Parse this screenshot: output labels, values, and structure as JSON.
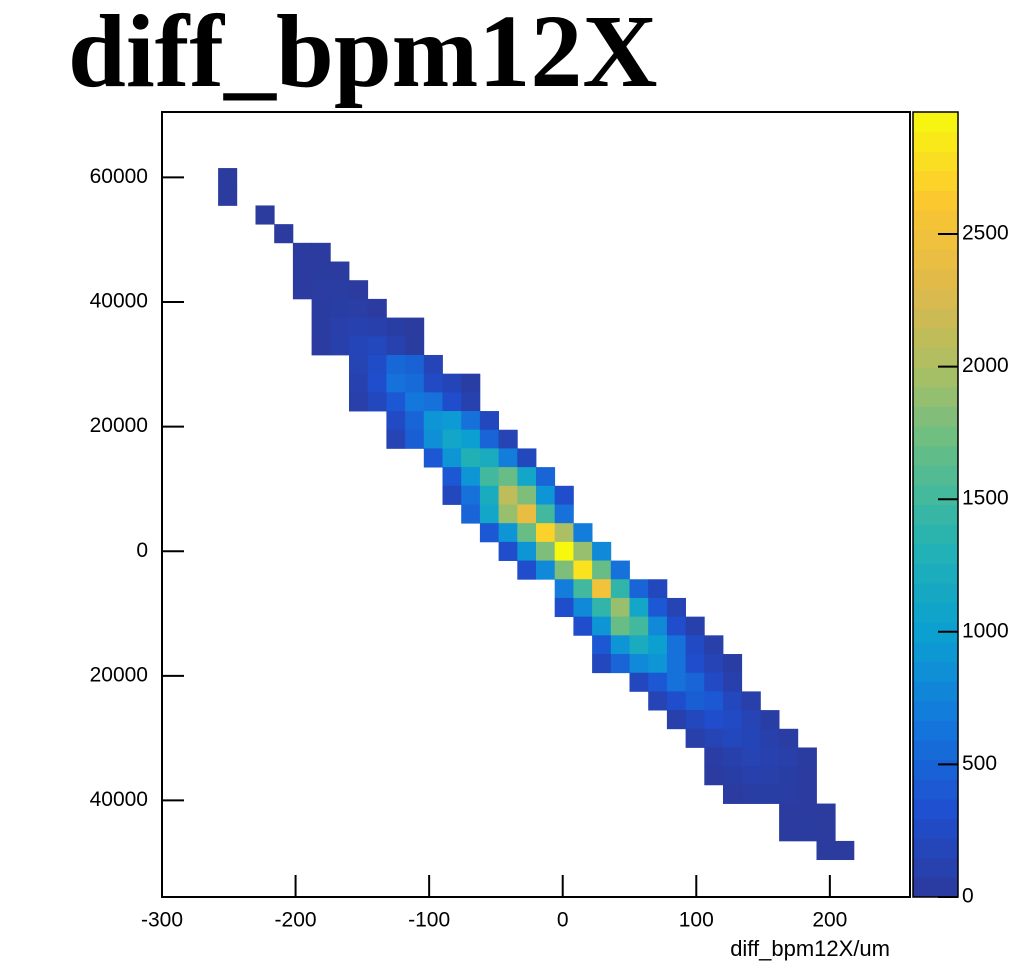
{
  "chart_data": {
    "type": "heatmap",
    "title": "diff_bpm12X",
    "x_label": "diff_bpm12X/um",
    "xlim": [
      -300,
      260
    ],
    "ylim": [
      -55500,
      70500
    ],
    "zlim": [
      0,
      2960
    ],
    "xticks": [
      -300,
      -200,
      -100,
      0,
      100,
      200
    ],
    "yticks": [
      60000,
      40000,
      20000,
      0,
      {
        "value": -20000,
        "label": "20000"
      },
      {
        "value": -40000,
        "label": "40000"
      }
    ],
    "zticks": [
      2500,
      2000,
      1500,
      1000,
      500,
      0
    ],
    "xbin_width": 14,
    "ybin_width": 3000,
    "palette": [
      "#2c3a9c",
      "#1e4fd0",
      "#1478dc",
      "#0b9fd2",
      "#22b2b4",
      "#5bbd8c",
      "#a8bf66",
      "#e0b94a",
      "#fcc830",
      "#f8fa0e"
    ],
    "rows": [
      {
        "y": 58500,
        "x": -258,
        "values": [
          15
        ]
      },
      {
        "y": 55500,
        "x": -258,
        "values": [
          15
        ]
      },
      {
        "y": 52500,
        "x": -230,
        "values": [
          12
        ]
      },
      {
        "y": 49500,
        "x": -216,
        "values": [
          14
        ]
      },
      {
        "y": 46500,
        "x": -202,
        "values": [
          20,
          18
        ]
      },
      {
        "y": 43500,
        "x": -202,
        "values": [
          22,
          30,
          15
        ]
      },
      {
        "y": 40500,
        "x": -202,
        "values": [
          18,
          35,
          40,
          12
        ]
      },
      {
        "y": 37500,
        "x": -188,
        "values": [
          30,
          60,
          55,
          20
        ]
      },
      {
        "y": 34500,
        "x": -188,
        "values": [
          25,
          80,
          120,
          100,
          60,
          15
        ]
      },
      {
        "y": 31500,
        "x": -188,
        "values": [
          20,
          90,
          180,
          200,
          120,
          30
        ]
      },
      {
        "y": 28500,
        "x": -160,
        "values": [
          150,
          280,
          520,
          480,
          160
        ]
      },
      {
        "y": 25500,
        "x": -160,
        "values": [
          120,
          300,
          600,
          550,
          250,
          180,
          60
        ]
      },
      {
        "y": 22500,
        "x": -160,
        "values": [
          80,
          200,
          400,
          650,
          600,
          300,
          120
        ]
      },
      {
        "y": 19500,
        "x": -132,
        "values": [
          250,
          500,
          900,
          950,
          600,
          200
        ]
      },
      {
        "y": 16500,
        "x": -132,
        "values": [
          150,
          450,
          850,
          1100,
          1000,
          500,
          150
        ]
      },
      {
        "y": 13500,
        "x": -104,
        "values": [
          400,
          900,
          1300,
          1200,
          700,
          200
        ]
      },
      {
        "y": 10500,
        "x": -90,
        "values": [
          400,
          900,
          1500,
          1700,
          1100,
          500
        ]
      },
      {
        "y": 7500,
        "x": -90,
        "values": [
          200,
          600,
          1200,
          2100,
          1800,
          900,
          300
        ]
      },
      {
        "y": 4500,
        "x": -76,
        "values": [
          500,
          1100,
          1900,
          2400,
          1500,
          600
        ]
      },
      {
        "y": 1500,
        "x": -62,
        "values": [
          400,
          900,
          1700,
          2700,
          2000,
          700
        ]
      },
      {
        "y": -1500,
        "x": -48,
        "values": [
          300,
          900,
          1800,
          2950,
          1900,
          800
        ]
      },
      {
        "y": -4500,
        "x": -34,
        "values": [
          300,
          800,
          1800,
          2800,
          1700,
          600
        ]
      },
      {
        "y": -7500,
        "x": -6,
        "values": [
          700,
          1500,
          2500,
          1400,
          500,
          200
        ]
      },
      {
        "y": -10500,
        "x": -6,
        "values": [
          300,
          800,
          1400,
          1900,
          1100,
          400,
          150
        ]
      },
      {
        "y": -13500,
        "x": 8,
        "values": [
          300,
          900,
          1700,
          1500,
          800,
          300,
          100
        ]
      },
      {
        "y": -16500,
        "x": 22,
        "values": [
          400,
          900,
          1200,
          1000,
          600,
          250,
          80
        ]
      },
      {
        "y": -19500,
        "x": 22,
        "values": [
          200,
          500,
          800,
          900,
          600,
          300,
          150,
          50
        ]
      },
      {
        "y": -22500,
        "x": 50,
        "values": [
          200,
          400,
          600,
          500,
          250,
          100
        ]
      },
      {
        "y": -25500,
        "x": 64,
        "values": [
          150,
          300,
          450,
          400,
          200,
          80
        ]
      },
      {
        "y": -28500,
        "x": 78,
        "values": [
          100,
          200,
          300,
          250,
          150,
          60
        ]
      },
      {
        "y": -31500,
        "x": 92,
        "values": [
          80,
          150,
          200,
          180,
          100,
          40
        ]
      },
      {
        "y": -34500,
        "x": 106,
        "values": [
          50,
          100,
          150,
          120,
          80,
          30
        ]
      },
      {
        "y": -37500,
        "x": 106,
        "values": [
          30,
          60,
          100,
          90,
          60,
          20
        ]
      },
      {
        "y": -40500,
        "x": 120,
        "values": [
          20,
          40,
          60,
          50,
          20
        ]
      },
      {
        "y": -43500,
        "x": 162,
        "values": [
          20,
          30,
          15
        ]
      },
      {
        "y": -46500,
        "x": 162,
        "values": [
          15,
          25,
          12
        ]
      },
      {
        "y": -49500,
        "x": 190,
        "values": [
          10,
          12
        ]
      }
    ]
  }
}
